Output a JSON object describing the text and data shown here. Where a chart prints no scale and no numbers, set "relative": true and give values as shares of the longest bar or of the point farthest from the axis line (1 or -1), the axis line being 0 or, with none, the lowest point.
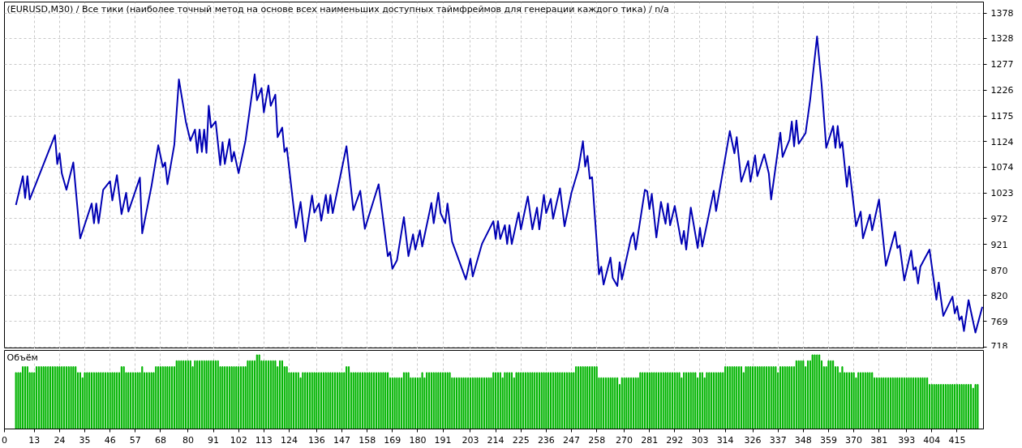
{
  "chart_data": [
    {
      "type": "line",
      "title": "(EURUSD,M30) / Все тики (наиболее точный метод на основе всех наименьших доступных таймфреймов для генерации каждого тика) / n/a",
      "series": [
        {
          "color": "#0000b4",
          "x": [
            5,
            8,
            9,
            10,
            11,
            22,
            23,
            24,
            25,
            27,
            30,
            33,
            38,
            39,
            40,
            41,
            43,
            46,
            47,
            49,
            51,
            53,
            54,
            59,
            60,
            64,
            67,
            69,
            70,
            71,
            74,
            76,
            79,
            81,
            83,
            84,
            85,
            86,
            87,
            88,
            89,
            90,
            92,
            94,
            95,
            96,
            98,
            99,
            100,
            102,
            105,
            109,
            110,
            112,
            113,
            115,
            116,
            118,
            119,
            121,
            122,
            123,
            127,
            129,
            131,
            134,
            135,
            137,
            138,
            140,
            141,
            142,
            143,
            149,
            152,
            155,
            157,
            163,
            167,
            168,
            169,
            171,
            174,
            176,
            178,
            179,
            181,
            182,
            186,
            187,
            189,
            190,
            192,
            193,
            195,
            201,
            203,
            204,
            208,
            213,
            214,
            215,
            216,
            218,
            219,
            220,
            221,
            224,
            225,
            228,
            230,
            232,
            233,
            235,
            236,
            238,
            239,
            242,
            244,
            247,
            250,
            252,
            253,
            254,
            255,
            256,
            259,
            260,
            261,
            264,
            265,
            267,
            268,
            269,
            273,
            274,
            275,
            279,
            280,
            281,
            282,
            284,
            286,
            288,
            289,
            290,
            292,
            295,
            296,
            297,
            299,
            302,
            303,
            304,
            309,
            310,
            316,
            318,
            319,
            321,
            324,
            325,
            327,
            328,
            331,
            333,
            334,
            338,
            339,
            342,
            343,
            344,
            345,
            346,
            349,
            351,
            354,
            356,
            358,
            361,
            362,
            363,
            364,
            365,
            367,
            368,
            371,
            373,
            374,
            377,
            378,
            381,
            384,
            388,
            389,
            390,
            392,
            395,
            396,
            397,
            398,
            399,
            403,
            406,
            407,
            409,
            413,
            414,
            415,
            416,
            417,
            418,
            420,
            423,
            426
          ],
          "values": [
            999,
            1056,
            1013,
            1056,
            1010,
            1137,
            1080,
            1101,
            1061,
            1029,
            1083,
            933,
            1002,
            963,
            1002,
            963,
            1029,
            1046,
            1008,
            1058,
            981,
            1023,
            986,
            1053,
            943,
            1035,
            1117,
            1074,
            1083,
            1040,
            1118,
            1247,
            1164,
            1126,
            1148,
            1102,
            1148,
            1104,
            1148,
            1102,
            1195,
            1152,
            1164,
            1078,
            1123,
            1080,
            1129,
            1085,
            1104,
            1062,
            1126,
            1257,
            1206,
            1230,
            1182,
            1235,
            1195,
            1217,
            1133,
            1152,
            1104,
            1112,
            954,
            1005,
            927,
            1018,
            984,
            1002,
            968,
            1019,
            983,
            1019,
            983,
            1115,
            989,
            1027,
            952,
            1040,
            898,
            906,
            873,
            890,
            975,
            898,
            941,
            911,
            949,
            917,
            1003,
            963,
            1023,
            983,
            963,
            1002,
            927,
            852,
            893,
            858,
            922,
            967,
            932,
            967,
            932,
            959,
            922,
            959,
            922,
            984,
            951,
            1016,
            951,
            994,
            951,
            1019,
            983,
            1011,
            972,
            1032,
            957,
            1023,
            1069,
            1125,
            1075,
            1096,
            1051,
            1054,
            862,
            877,
            842,
            895,
            855,
            839,
            886,
            852,
            935,
            944,
            911,
            1029,
            1026,
            991,
            1021,
            935,
            1005,
            962,
            1002,
            959,
            997,
            922,
            948,
            911,
            994,
            914,
            954,
            917,
            1027,
            987,
            1145,
            1101,
            1133,
            1045,
            1086,
            1045,
            1097,
            1056,
            1099,
            1061,
            1010,
            1142,
            1094,
            1128,
            1164,
            1115,
            1166,
            1120,
            1141,
            1207,
            1332,
            1236,
            1112,
            1155,
            1112,
            1155,
            1112,
            1123,
            1035,
            1075,
            957,
            986,
            933,
            980,
            949,
            1010,
            879,
            946,
            914,
            919,
            850,
            909,
            871,
            876,
            844,
            877,
            911,
            812,
            846,
            780,
            818,
            785,
            799,
            772,
            779,
            750,
            811,
            747,
            798
          ]
        }
      ],
      "xlim": [
        0,
        426.5
      ],
      "xticks": [
        0,
        13,
        24,
        35,
        46,
        57,
        68,
        80,
        91,
        102,
        113,
        124,
        136,
        147,
        158,
        169,
        180,
        191,
        203,
        214,
        225,
        236,
        247,
        258,
        270,
        281,
        292,
        303,
        314,
        326,
        337,
        348,
        359,
        370,
        381,
        393,
        404,
        415
      ],
      "ylim": [
        715,
        1400
      ],
      "yticks": [
        718,
        769,
        820,
        870,
        921,
        972,
        1023,
        1074,
        1124,
        1175,
        1226,
        1277,
        1328,
        1378
      ],
      "grid": true,
      "tick_labels": "y"
    },
    {
      "type": "bar",
      "title": "Объём",
      "relative": true,
      "color": "#00b400",
      "x": [
        5,
        6,
        7,
        8,
        9,
        10,
        11,
        12,
        13,
        14,
        15,
        16,
        17,
        18,
        19,
        20,
        21,
        22,
        23,
        24,
        25,
        26,
        27,
        28,
        29,
        30,
        31,
        32,
        33,
        34,
        35,
        36,
        37,
        38,
        39,
        40,
        41,
        42,
        43,
        44,
        45,
        46,
        47,
        48,
        49,
        50,
        51,
        52,
        53,
        54,
        55,
        56,
        57,
        58,
        59,
        60,
        61,
        62,
        63,
        64,
        65,
        66,
        67,
        68,
        69,
        70,
        71,
        72,
        73,
        74,
        75,
        76,
        77,
        78,
        79,
        80,
        81,
        82,
        83,
        84,
        85,
        86,
        87,
        88,
        89,
        90,
        91,
        92,
        93,
        94,
        95,
        96,
        97,
        98,
        99,
        100,
        101,
        102,
        103,
        104,
        105,
        106,
        107,
        108,
        109,
        110,
        111,
        112,
        113,
        114,
        115,
        116,
        117,
        118,
        119,
        120,
        121,
        122,
        123,
        124,
        125,
        126,
        127,
        128,
        129,
        130,
        131,
        132,
        133,
        134,
        135,
        136,
        137,
        138,
        139,
        140,
        141,
        142,
        143,
        144,
        145,
        146,
        147,
        148,
        149,
        150,
        151,
        152,
        153,
        154,
        155,
        156,
        157,
        158,
        159,
        160,
        161,
        162,
        163,
        164,
        165,
        166,
        167,
        168,
        169,
        170,
        171,
        172,
        173,
        174,
        175,
        176,
        177,
        178,
        179,
        180,
        181,
        182,
        183,
        184,
        185,
        186,
        187,
        188,
        189,
        190,
        191,
        192,
        193,
        194,
        195,
        196,
        197,
        198,
        199,
        200,
        201,
        202,
        203,
        204,
        205,
        206,
        207,
        208,
        209,
        210,
        211,
        212,
        213,
        214,
        215,
        216,
        217,
        218,
        219,
        220,
        221,
        222,
        223,
        224,
        225,
        226,
        227,
        228,
        229,
        230,
        231,
        232,
        233,
        234,
        235,
        236,
        237,
        238,
        239,
        240,
        241,
        242,
        243,
        244,
        245,
        246,
        247,
        248,
        249,
        250,
        251,
        252,
        253,
        254,
        255,
        256,
        257,
        258,
        259,
        260,
        261,
        262,
        263,
        264,
        265,
        266,
        267,
        268,
        269,
        270,
        271,
        272,
        273,
        274,
        275,
        276,
        277,
        278,
        279,
        280,
        281,
        282,
        283,
        284,
        285,
        286,
        287,
        288,
        289,
        290,
        291,
        292,
        293,
        294,
        295,
        296,
        297,
        298,
        299,
        300,
        301,
        302,
        303,
        304,
        305,
        306,
        307,
        308,
        309,
        310,
        311,
        312,
        313,
        314,
        315,
        316,
        317,
        318,
        319,
        320,
        321,
        322,
        323,
        324,
        325,
        326,
        327,
        328,
        329,
        330,
        331,
        332,
        333,
        334,
        335,
        336,
        337,
        338,
        339,
        340,
        341,
        342,
        343,
        344,
        345,
        346,
        347,
        348,
        349,
        350,
        351,
        352,
        353,
        354,
        355,
        356,
        357,
        358,
        359,
        360,
        361,
        362,
        363,
        364,
        365,
        366,
        367,
        368,
        369,
        370,
        371,
        372,
        373,
        374,
        375,
        376,
        377,
        378,
        379,
        380,
        381,
        382,
        383,
        384,
        385,
        386,
        387,
        388,
        389,
        390,
        391,
        392,
        393,
        394,
        395,
        396,
        397,
        398,
        399,
        400,
        401,
        402,
        403,
        404,
        405,
        406,
        407,
        408,
        409,
        410,
        411,
        412,
        413,
        414,
        415,
        416,
        417,
        418,
        419,
        420,
        421,
        422,
        423,
        424
      ],
      "values": [
        0.76,
        0.76,
        0.76,
        0.84,
        0.84,
        0.84,
        0.76,
        0.76,
        0.76,
        0.84,
        0.84,
        0.84,
        0.84,
        0.84,
        0.84,
        0.84,
        0.84,
        0.84,
        0.84,
        0.84,
        0.84,
        0.84,
        0.84,
        0.84,
        0.84,
        0.84,
        0.84,
        0.76,
        0.76,
        0.69,
        0.76,
        0.76,
        0.76,
        0.76,
        0.76,
        0.76,
        0.76,
        0.76,
        0.76,
        0.76,
        0.76,
        0.76,
        0.76,
        0.76,
        0.76,
        0.76,
        0.84,
        0.84,
        0.76,
        0.76,
        0.76,
        0.76,
        0.76,
        0.76,
        0.76,
        0.84,
        0.76,
        0.76,
        0.76,
        0.76,
        0.76,
        0.84,
        0.84,
        0.84,
        0.84,
        0.84,
        0.84,
        0.84,
        0.84,
        0.84,
        0.92,
        0.92,
        0.92,
        0.92,
        0.92,
        0.92,
        0.92,
        0.84,
        0.92,
        0.92,
        0.92,
        0.92,
        0.92,
        0.92,
        0.92,
        0.92,
        0.92,
        0.92,
        0.92,
        0.84,
        0.84,
        0.84,
        0.84,
        0.84,
        0.84,
        0.84,
        0.84,
        0.84,
        0.84,
        0.84,
        0.84,
        0.92,
        0.92,
        0.92,
        0.92,
        1,
        1,
        0.92,
        0.92,
        0.92,
        0.92,
        0.92,
        0.92,
        0.92,
        0.84,
        0.92,
        0.92,
        0.84,
        0.84,
        0.76,
        0.76,
        0.76,
        0.76,
        0.76,
        0.69,
        0.76,
        0.76,
        0.76,
        0.76,
        0.76,
        0.76,
        0.76,
        0.76,
        0.76,
        0.76,
        0.76,
        0.76,
        0.76,
        0.76,
        0.76,
        0.76,
        0.76,
        0.76,
        0.76,
        0.84,
        0.84,
        0.76,
        0.76,
        0.76,
        0.76,
        0.76,
        0.76,
        0.76,
        0.76,
        0.76,
        0.76,
        0.76,
        0.76,
        0.76,
        0.76,
        0.76,
        0.76,
        0.76,
        0.69,
        0.69,
        0.69,
        0.69,
        0.69,
        0.69,
        0.76,
        0.76,
        0.76,
        0.69,
        0.69,
        0.69,
        0.69,
        0.69,
        0.76,
        0.69,
        0.76,
        0.76,
        0.76,
        0.76,
        0.76,
        0.76,
        0.76,
        0.76,
        0.76,
        0.76,
        0.76,
        0.69,
        0.69,
        0.69,
        0.69,
        0.69,
        0.69,
        0.69,
        0.69,
        0.69,
        0.69,
        0.69,
        0.69,
        0.69,
        0.69,
        0.69,
        0.69,
        0.69,
        0.69,
        0.76,
        0.76,
        0.76,
        0.76,
        0.69,
        0.76,
        0.76,
        0.76,
        0.76,
        0.69,
        0.76,
        0.76,
        0.76,
        0.76,
        0.76,
        0.76,
        0.76,
        0.76,
        0.76,
        0.76,
        0.76,
        0.76,
        0.76,
        0.76,
        0.76,
        0.76,
        0.76,
        0.76,
        0.76,
        0.76,
        0.76,
        0.76,
        0.76,
        0.76,
        0.76,
        0.76,
        0.84,
        0.84,
        0.84,
        0.84,
        0.84,
        0.84,
        0.84,
        0.84,
        0.84,
        0.84,
        0.69,
        0.69,
        0.69,
        0.69,
        0.69,
        0.69,
        0.69,
        0.69,
        0.69,
        0.6,
        0.69,
        0.69,
        0.69,
        0.69,
        0.69,
        0.69,
        0.69,
        0.69,
        0.76,
        0.76,
        0.76,
        0.76,
        0.76,
        0.76,
        0.76,
        0.76,
        0.76,
        0.76,
        0.76,
        0.76,
        0.76,
        0.76,
        0.76,
        0.76,
        0.76,
        0.76,
        0.69,
        0.76,
        0.76,
        0.76,
        0.76,
        0.76,
        0.76,
        0.69,
        0.76,
        0.76,
        0.69,
        0.76,
        0.76,
        0.76,
        0.76,
        0.76,
        0.76,
        0.76,
        0.76,
        0.84,
        0.84,
        0.84,
        0.84,
        0.84,
        0.84,
        0.84,
        0.84,
        0.76,
        0.84,
        0.84,
        0.84,
        0.84,
        0.84,
        0.84,
        0.84,
        0.84,
        0.84,
        0.84,
        0.84,
        0.84,
        0.84,
        0.84,
        0.76,
        0.84,
        0.84,
        0.84,
        0.84,
        0.84,
        0.84,
        0.84,
        0.92,
        0.92,
        0.92,
        0.92,
        0.84,
        0.92,
        0.92,
        1,
        1,
        1,
        1,
        0.92,
        0.84,
        0.84,
        0.92,
        0.92,
        0.92,
        0.84,
        0.84,
        0.76,
        0.84,
        0.76,
        0.76,
        0.76,
        0.76,
        0.76,
        0.69,
        0.76,
        0.76,
        0.76,
        0.76,
        0.76,
        0.76,
        0.76,
        0.69,
        0.69,
        0.69,
        0.69,
        0.69,
        0.69,
        0.69,
        0.69,
        0.69,
        0.69,
        0.69,
        0.69,
        0.69,
        0.69,
        0.69,
        0.69,
        0.69,
        0.69,
        0.69,
        0.69,
        0.69,
        0.69,
        0.69,
        0.69,
        0.6,
        0.6,
        0.6,
        0.6,
        0.6,
        0.6,
        0.6,
        0.6,
        0.6,
        0.6,
        0.6,
        0.6,
        0.6,
        0.6,
        0.6,
        0.6,
        0.6,
        0.6,
        0.6,
        0.55,
        0.6,
        0.6
      ],
      "xlim": [
        0,
        426.5
      ],
      "xticks": [
        0,
        13,
        24,
        35,
        46,
        57,
        68,
        80,
        91,
        102,
        113,
        124,
        136,
        147,
        158,
        169,
        180,
        191,
        203,
        214,
        225,
        236,
        247,
        258,
        270,
        281,
        292,
        303,
        314,
        326,
        337,
        348,
        359,
        370,
        381,
        393,
        404,
        415
      ],
      "grid": "x"
    }
  ]
}
